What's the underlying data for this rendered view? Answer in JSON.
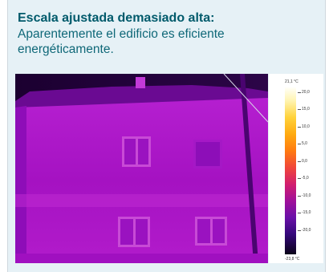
{
  "heading": {
    "title": "Escala ajustada demasiado alta:",
    "subtitle": "Aparentemente el edificio es eficiente energéticamente."
  },
  "scale": {
    "max_label": "21,1 °C",
    "min_label": "-23,8 °C",
    "ticks": [
      "20,0",
      "15,0",
      "10,0",
      "5,0",
      "0,0",
      "-5,0",
      "-10,0",
      "-15,0",
      "-20,0"
    ]
  },
  "image": {
    "content": "thermal image of building facade",
    "palette_colors": [
      "#22003a",
      "#7a0aa8",
      "#b21ac8",
      "#d23ad8",
      "#e060e8"
    ]
  }
}
